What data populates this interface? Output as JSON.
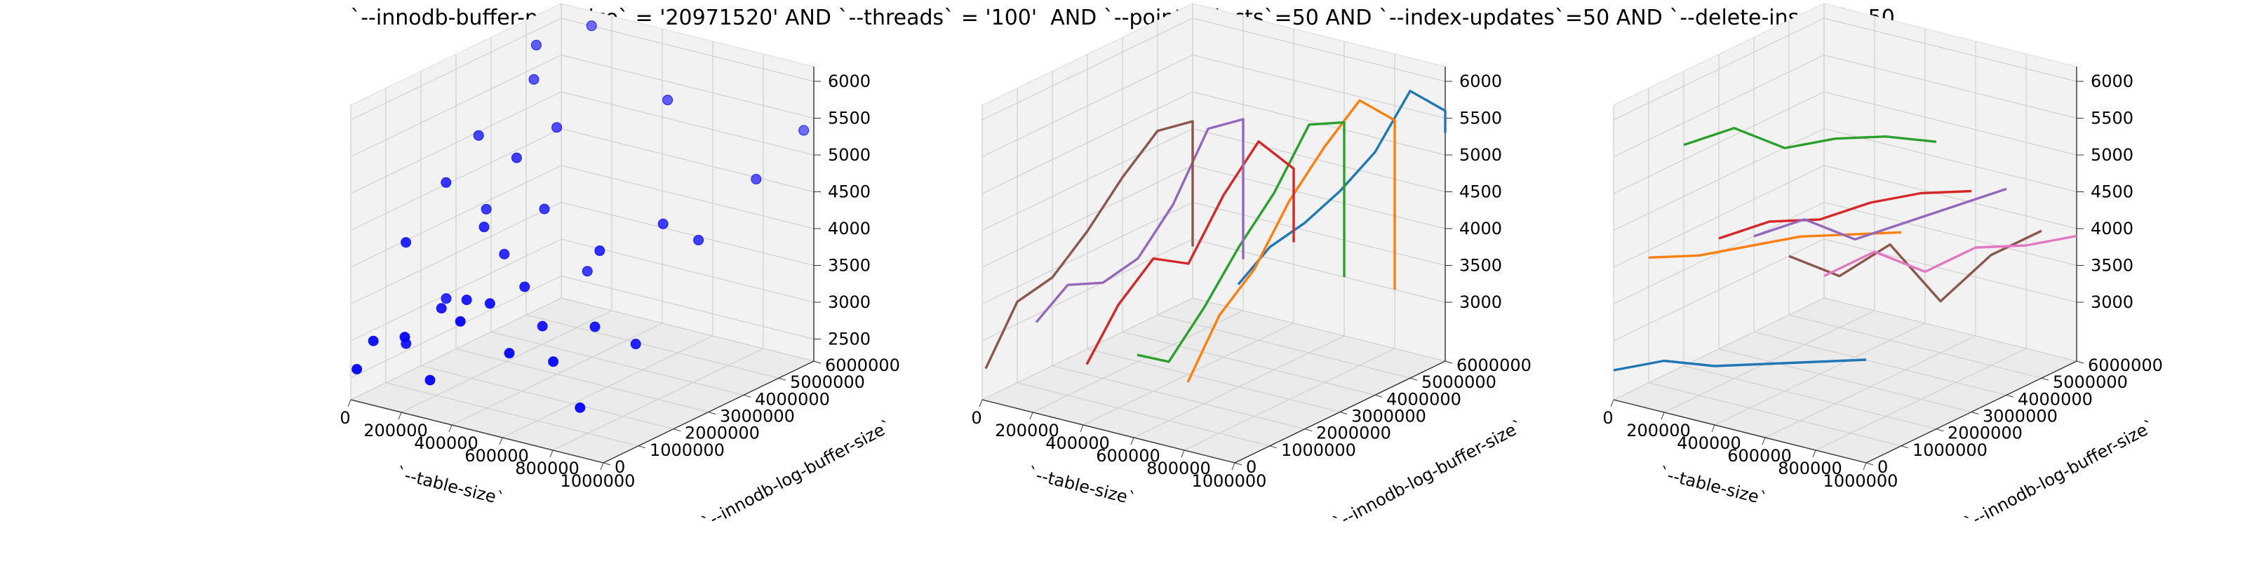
{
  "figure": {
    "title": "`--innodb-buffer-pool-size` = '20971520' AND `--threads` = '100'  AND `--point-selects`=50 AND `--index-updates`=50 AND `--delete-inserts`=50"
  },
  "chart_data": [
    {
      "type": "scatter3d",
      "xlabel": "`--table-size`",
      "ylabel": "`--innodb-log-buffer-size`",
      "zlabel": "",
      "xlim": [
        0,
        1000000
      ],
      "ylim": [
        0,
        6000000
      ],
      "zlim": [
        2200,
        6200
      ],
      "xticks": [
        "0",
        "200000",
        "400000",
        "600000",
        "800000",
        "1000000"
      ],
      "yticks": [
        "0",
        "1000000",
        "2000000",
        "3000000",
        "4000000",
        "5000000",
        "6000000"
      ],
      "zticks": [
        "2500",
        "3000",
        "3500",
        "4000",
        "4500",
        "5000",
        "5500",
        "6000"
      ],
      "grid": true,
      "marker_color": "#0000ff",
      "points": [
        {
          "x": 10000,
          "y": 100000,
          "z": 2600
        },
        {
          "x": 20000,
          "y": 500000,
          "z": 2900
        },
        {
          "x": 10000,
          "y": 1500000,
          "z": 4000
        },
        {
          "x": 30000,
          "y": 2500000,
          "z": 4600
        },
        {
          "x": 20000,
          "y": 3500000,
          "z": 5000
        },
        {
          "x": 40000,
          "y": 5000000,
          "z": 5900
        },
        {
          "x": 80000,
          "y": 1000000,
          "z": 2800
        },
        {
          "x": 100000,
          "y": 2000000,
          "z": 3200
        },
        {
          "x": 120000,
          "y": 3000000,
          "z": 4200
        },
        {
          "x": 100000,
          "y": 4500000,
          "z": 5600
        },
        {
          "x": 120000,
          "y": 6000000,
          "z": 6000
        },
        {
          "x": 200000,
          "y": 100000,
          "z": 3200
        },
        {
          "x": 220000,
          "y": 1000000,
          "z": 3400
        },
        {
          "x": 250000,
          "y": 2000000,
          "z": 4300
        },
        {
          "x": 240000,
          "y": 3000000,
          "z": 5000
        },
        {
          "x": 260000,
          "y": 4000000,
          "z": 5200
        },
        {
          "x": 300000,
          "y": 100000,
          "z": 2700
        },
        {
          "x": 320000,
          "y": 1000000,
          "z": 3600
        },
        {
          "x": 330000,
          "y": 2000000,
          "z": 4000
        },
        {
          "x": 350000,
          "y": 3000000,
          "z": 4400
        },
        {
          "x": 420000,
          "y": 100000,
          "z": 3600
        },
        {
          "x": 440000,
          "y": 800000,
          "z": 3700
        },
        {
          "x": 480000,
          "y": 1500000,
          "z": 3800
        },
        {
          "x": 520000,
          "y": 3000000,
          "z": 3700
        },
        {
          "x": 560000,
          "y": 5000000,
          "z": 5600
        },
        {
          "x": 600000,
          "y": 200000,
          "z": 3300
        },
        {
          "x": 620000,
          "y": 1000000,
          "z": 3500
        },
        {
          "x": 680000,
          "y": 2200000,
          "z": 4300
        },
        {
          "x": 760000,
          "y": 300000,
          "z": 3300
        },
        {
          "x": 800000,
          "y": 1200000,
          "z": 3600
        },
        {
          "x": 820000,
          "y": 3000000,
          "z": 4600
        },
        {
          "x": 880000,
          "y": 200000,
          "z": 2800
        },
        {
          "x": 920000,
          "y": 1500000,
          "z": 3400
        },
        {
          "x": 960000,
          "y": 3000000,
          "z": 4500
        },
        {
          "x": 980000,
          "y": 4500000,
          "z": 5000
        },
        {
          "x": 960000,
          "y": 6000000,
          "z": 5300
        }
      ]
    },
    {
      "type": "line3d",
      "xlabel": "`--table-size`",
      "ylabel": "`--innodb-log-buffer-size`",
      "zlabel": "",
      "xlim": [
        0,
        1000000
      ],
      "ylim": [
        0,
        6000000
      ],
      "zlim": [
        2200,
        6200
      ],
      "xticks": [
        "0",
        "200000",
        "400000",
        "600000",
        "800000",
        "1000000"
      ],
      "yticks": [
        "0",
        "1000000",
        "2000000",
        "3000000",
        "4000000",
        "5000000",
        "6000000"
      ],
      "zticks": [
        "3000",
        "3500",
        "4000",
        "4500",
        "5000",
        "5500",
        "6000"
      ],
      "grid": true,
      "series": [
        {
          "color": "#1f77b4",
          "x": [
            1000000,
            1000000,
            1000000,
            1000000,
            1000000,
            1000000,
            1000000,
            1000000
          ],
          "y": [
            100000,
            1000000,
            2000000,
            3000000,
            4000000,
            5000000,
            6000000,
            6000000
          ],
          "z": [
            4600,
            4900,
            5000,
            5200,
            5500,
            6100,
            5600,
            5300
          ]
        },
        {
          "color": "#ff7f0e",
          "x": [
            800000,
            800000,
            800000,
            800000,
            800000,
            800000,
            800000,
            800000
          ],
          "y": [
            100000,
            1000000,
            2000000,
            3000000,
            4000000,
            5000000,
            6000000,
            6000000
          ],
          "z": [
            3100,
            3800,
            4200,
            4900,
            5400,
            5800,
            5300,
            3000
          ]
        },
        {
          "color": "#2ca02c",
          "x": [
            600000,
            600000,
            600000,
            600000,
            600000,
            600000,
            600000,
            600000
          ],
          "y": [
            100000,
            1000000,
            2000000,
            3000000,
            4000000,
            5000000,
            6000000,
            6000000
          ],
          "z": [
            3300,
            3000,
            3500,
            4100,
            4600,
            5300,
            5100,
            3000
          ]
        },
        {
          "color": "#d62728",
          "x": [
            400000,
            400000,
            400000,
            400000,
            400000,
            400000,
            400000,
            400000
          ],
          "y": [
            100000,
            1000000,
            2000000,
            3000000,
            4000000,
            5000000,
            6000000,
            6000000
          ],
          "z": [
            3000,
            3600,
            4000,
            3700,
            4400,
            4900,
            4300,
            3300
          ]
        },
        {
          "color": "#9467bd",
          "x": [
            200000,
            200000,
            200000,
            200000,
            200000,
            200000,
            200000,
            200000
          ],
          "y": [
            100000,
            1000000,
            2000000,
            3000000,
            4000000,
            5000000,
            6000000,
            6000000
          ],
          "z": [
            3400,
            3700,
            3500,
            3600,
            4100,
            4900,
            4800,
            2900
          ]
        },
        {
          "color": "#8c564b",
          "x": [
            0,
            0,
            0,
            0,
            0,
            0,
            0,
            0
          ],
          "y": [
            100000,
            1000000,
            2000000,
            3000000,
            4000000,
            5000000,
            6000000,
            6000000
          ],
          "z": [
            2600,
            3300,
            3400,
            3800,
            4300,
            4700,
            4600,
            2900
          ]
        }
      ]
    },
    {
      "type": "line3d",
      "xlabel": "`--table-size`",
      "ylabel": "`--innodb-log-buffer-size`",
      "zlabel": "",
      "xlim": [
        0,
        1000000
      ],
      "ylim": [
        0,
        6000000
      ],
      "zlim": [
        2200,
        6200
      ],
      "xticks": [
        "0",
        "200000",
        "400000",
        "600000",
        "800000",
        "1000000"
      ],
      "yticks": [
        "0",
        "1000000",
        "2000000",
        "3000000",
        "4000000",
        "5000000",
        "6000000"
      ],
      "zticks": [
        "3000",
        "3500",
        "4000",
        "4500",
        "5000",
        "5500",
        "6000"
      ],
      "grid": true,
      "series": [
        {
          "color": "#1f77b4",
          "x": [
            0,
            200000,
            400000,
            600000,
            800000,
            1000000
          ],
          "y": [
            0,
            0,
            0,
            0,
            0,
            0
          ],
          "z": [
            2600,
            2900,
            3000,
            3200,
            3400,
            3600
          ]
        },
        {
          "color": "#ff7f0e",
          "x": [
            0,
            200000,
            400000,
            600000,
            800000,
            1000000
          ],
          "y": [
            1000000,
            1000000,
            1000000,
            1000000,
            1000000,
            1000000
          ],
          "z": [
            3900,
            4100,
            4400,
            4700,
            4900,
            5100
          ]
        },
        {
          "color": "#2ca02c",
          "x": [
            0,
            200000,
            400000,
            600000,
            800000,
            1000000
          ],
          "y": [
            2000000,
            2000000,
            2000000,
            2000000,
            2000000,
            2000000
          ],
          "z": [
            5200,
            5600,
            5500,
            5800,
            6000,
            6100
          ]
        },
        {
          "color": "#d62728",
          "x": [
            0,
            200000,
            400000,
            600000,
            800000,
            1000000
          ],
          "y": [
            3000000,
            3000000,
            3000000,
            3000000,
            3000000,
            3000000
          ],
          "z": [
            3700,
            4100,
            4300,
            4700,
            5000,
            5200
          ]
        },
        {
          "color": "#9467bd",
          "x": [
            0,
            200000,
            400000,
            600000,
            800000,
            1000000
          ],
          "y": [
            4000000,
            4000000,
            4000000,
            4000000,
            4000000,
            4000000
          ],
          "z": [
            3500,
            3900,
            3800,
            4200,
            4600,
            5000
          ]
        },
        {
          "color": "#8c564b",
          "x": [
            0,
            200000,
            400000,
            600000,
            800000,
            1000000
          ],
          "y": [
            5000000,
            5000000,
            5000000,
            5000000,
            5000000,
            5000000
          ],
          "z": [
            3000,
            2900,
            3500,
            2900,
            3700,
            4200
          ]
        },
        {
          "color": "#e377c2",
          "x": [
            0,
            200000,
            400000,
            600000,
            800000,
            1000000
          ],
          "y": [
            6000000,
            6000000,
            6000000,
            6000000,
            6000000,
            6000000
          ],
          "z": [
            2500,
            3000,
            2900,
            3400,
            3600,
            3900
          ]
        }
      ]
    }
  ]
}
